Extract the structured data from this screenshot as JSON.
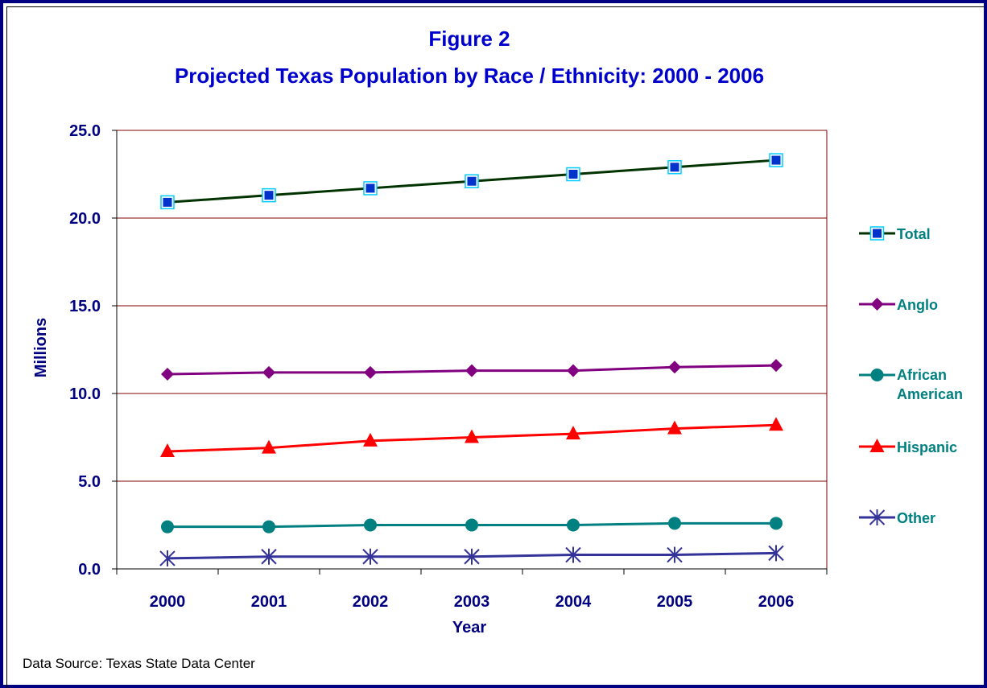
{
  "chart_data": {
    "type": "line",
    "title": "Figure 2",
    "subtitle": "Projected Texas Population by Race / Ethnicity: 2000 - 2006",
    "xlabel": "Year",
    "ylabel": "Millions",
    "categories": [
      "2000",
      "2001",
      "2002",
      "2003",
      "2004",
      "2005",
      "2006"
    ],
    "ylim": [
      0,
      25
    ],
    "yticks": [
      "0.0",
      "5.0",
      "10.0",
      "15.0",
      "20.0",
      "25.0"
    ],
    "grid": true,
    "legend_position": "right",
    "series": [
      {
        "name": "Total",
        "values": [
          20.9,
          21.3,
          21.7,
          22.1,
          22.5,
          22.9,
          23.3
        ],
        "color": "#003300",
        "marker": "square",
        "marker_color": "#0033cc"
      },
      {
        "name": "Anglo",
        "values": [
          11.1,
          11.2,
          11.2,
          11.3,
          11.3,
          11.5,
          11.6
        ],
        "color": "#800080",
        "marker": "diamond",
        "marker_color": "#800080"
      },
      {
        "name": "African American",
        "values": [
          2.4,
          2.4,
          2.5,
          2.5,
          2.5,
          2.6,
          2.6
        ],
        "color": "#008080",
        "marker": "circle",
        "marker_color": "#008080"
      },
      {
        "name": "Hispanic",
        "values": [
          6.7,
          6.9,
          7.3,
          7.5,
          7.7,
          8.0,
          8.2
        ],
        "color": "#ff0000",
        "marker": "triangle",
        "marker_color": "#ff0000"
      },
      {
        "name": "Other",
        "values": [
          0.6,
          0.7,
          0.7,
          0.7,
          0.8,
          0.8,
          0.9
        ],
        "color": "#333399",
        "marker": "asterisk",
        "marker_color": "#333399"
      }
    ],
    "colors": {
      "gridline": "#800000",
      "plot_border": "#800000",
      "title": "#0000cc",
      "axis_text": "#000080",
      "legend_text": "#008080"
    }
  },
  "source": "Data Source: Texas State Data Center"
}
